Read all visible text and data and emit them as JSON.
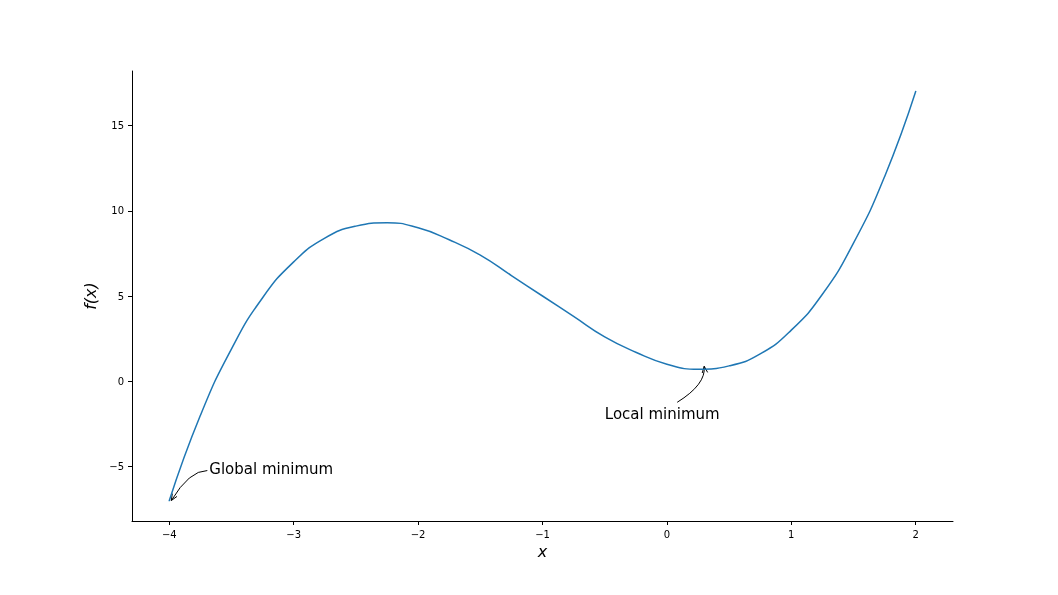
{
  "chart_data": {
    "type": "line",
    "xlabel": "x",
    "ylabel": "f(x)",
    "x": [
      -4,
      -3.75,
      -3.5,
      -3.25,
      -3,
      -2.75,
      -2.5,
      -2.25,
      -2,
      -1.75,
      -1.5,
      -1.25,
      -1,
      -0.75,
      -0.5,
      -0.25,
      0,
      0.25,
      0.5,
      0.75,
      1,
      1.25,
      1.5,
      1.75,
      2
    ],
    "series": [
      {
        "color": "#1f77b4",
        "values": [
          -7,
          -2.0,
          1.9,
          4.9,
          7.0,
          8.4,
          9.1,
          9.3,
          9.0,
          8.3,
          7.4,
          6.2,
          5.0,
          3.8,
          2.6,
          1.7,
          1.0,
          0.7,
          0.9,
          1.6,
          3.0,
          5.1,
          8.1,
          12.0,
          17
        ]
      }
    ],
    "xlim": [
      -4.3,
      2.3
    ],
    "xticks": [
      {
        "value": -4,
        "label": "−4"
      },
      {
        "value": -3,
        "label": "−3"
      },
      {
        "value": -2,
        "label": "−2"
      },
      {
        "value": -1,
        "label": "−1"
      },
      0,
      1,
      2
    ],
    "ylim": [
      -8.2,
      18.2
    ],
    "yticks": [
      {
        "value": -5,
        "label": "−5"
      },
      0,
      5,
      10,
      15
    ],
    "annotations": [
      {
        "text": "Global minimum",
        "x": -4,
        "y": -7
      },
      {
        "text": "Local minimum",
        "x": 0.3,
        "y": 0.7
      }
    ],
    "grid": false,
    "marker": "none",
    "line_style": "solid"
  }
}
